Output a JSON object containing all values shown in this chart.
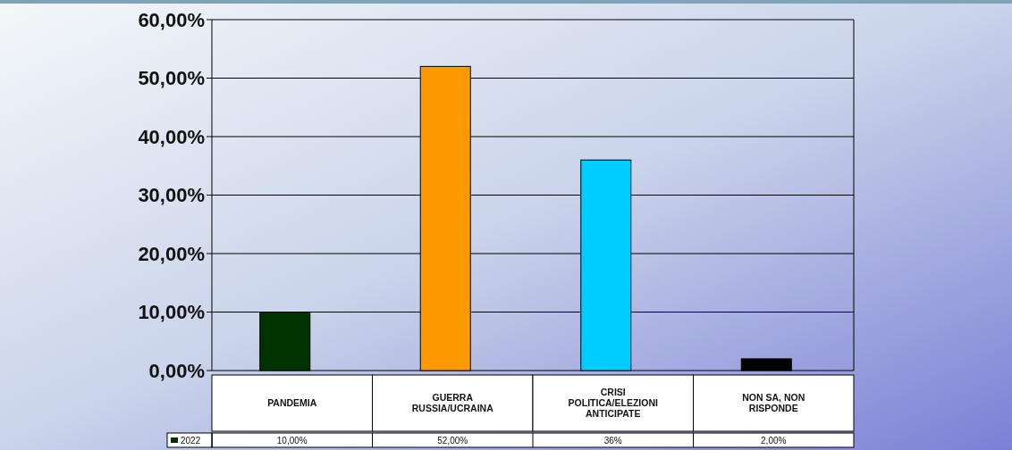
{
  "chart_data": {
    "type": "bar",
    "categories": [
      "PANDEMIA",
      "GUERRA RUSSIA/UCRAINA",
      "CRISI POLITICA/ELEZIONI ANTICIPATE",
      "NON SA, NON RISPONDE"
    ],
    "series": [
      {
        "name": "2022",
        "color": "#0a2a0a",
        "colors": [
          "#003300",
          "#ff9900",
          "#00ccff",
          "#000000"
        ],
        "values": [
          10,
          52,
          36,
          2
        ],
        "value_labels": [
          "10,00%",
          "52,00%",
          "36%",
          "2,00%"
        ]
      }
    ],
    "ylim": [
      0,
      60
    ],
    "yticks": [
      {
        "value": 0,
        "label": "0,00%"
      },
      {
        "value": 10,
        "label": "10,00%"
      },
      {
        "value": 20,
        "label": "20,00%"
      },
      {
        "value": 30,
        "label": "30,00%"
      },
      {
        "value": 40,
        "label": "40,00%"
      },
      {
        "value": 50,
        "label": "50,00%"
      },
      {
        "value": 60,
        "label": "60,00%"
      }
    ],
    "grid": "y",
    "legend": "bottom"
  }
}
